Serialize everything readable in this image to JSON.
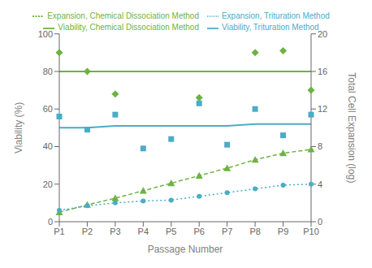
{
  "chart_data": {
    "type": "line",
    "categories": [
      "P1",
      "P2",
      "P3",
      "P4",
      "P5",
      "P6",
      "P7",
      "P8",
      "P9",
      "P10"
    ],
    "xlabel": "Passage Number",
    "ylabel": "Viability (%)",
    "y2label": "Total Cell Expansion (log)",
    "ylim": [
      0,
      100
    ],
    "yticks": [
      0,
      20,
      40,
      60,
      80,
      100
    ],
    "y2lim": [
      0,
      20
    ],
    "y2ticks": [
      0,
      4,
      8,
      12,
      16,
      20
    ],
    "grid": false,
    "legend": "top",
    "series": [
      {
        "name": "Viability, Chemical Dissociation Method",
        "type": "line",
        "color": "#6db33f",
        "line_style": "solid",
        "marker": "none",
        "axis": "y",
        "values": [
          80,
          80,
          80,
          80,
          80,
          80,
          80,
          80,
          80,
          80
        ]
      },
      {
        "type": "scatter",
        "color": "#6db33f",
        "marker": "diamond",
        "axis": "y",
        "values": [
          90,
          80,
          68,
          null,
          null,
          66,
          null,
          90,
          91,
          70
        ]
      },
      {
        "name": "Viability, Trituration Method",
        "type": "line",
        "color": "#4bacc6",
        "line_style": "solid",
        "marker": "none",
        "axis": "y",
        "values": [
          50,
          50,
          51,
          51,
          51,
          51,
          51,
          52,
          52,
          52
        ]
      },
      {
        "type": "scatter",
        "color": "#4bacc6",
        "marker": "square",
        "axis": "y",
        "values": [
          56,
          49,
          57,
          39,
          44,
          63,
          41,
          60,
          46,
          57
        ]
      },
      {
        "name": "Expansion, Chemical Dissociation Method",
        "type": "line",
        "color": "#6db33f",
        "line_style": "dashed",
        "marker": "triangle",
        "axis": "y2",
        "values": [
          1.0,
          1.8,
          2.5,
          3.3,
          4.1,
          4.9,
          5.7,
          6.6,
          7.3,
          7.7
        ]
      },
      {
        "name": "Expansion, Trituration Method",
        "type": "line",
        "color": "#4bacc6",
        "line_style": "dotted",
        "marker": "circle",
        "axis": "y2",
        "values": [
          1.2,
          1.7,
          2.0,
          2.2,
          2.3,
          2.7,
          3.1,
          3.5,
          3.9,
          4.0
        ]
      }
    ]
  }
}
